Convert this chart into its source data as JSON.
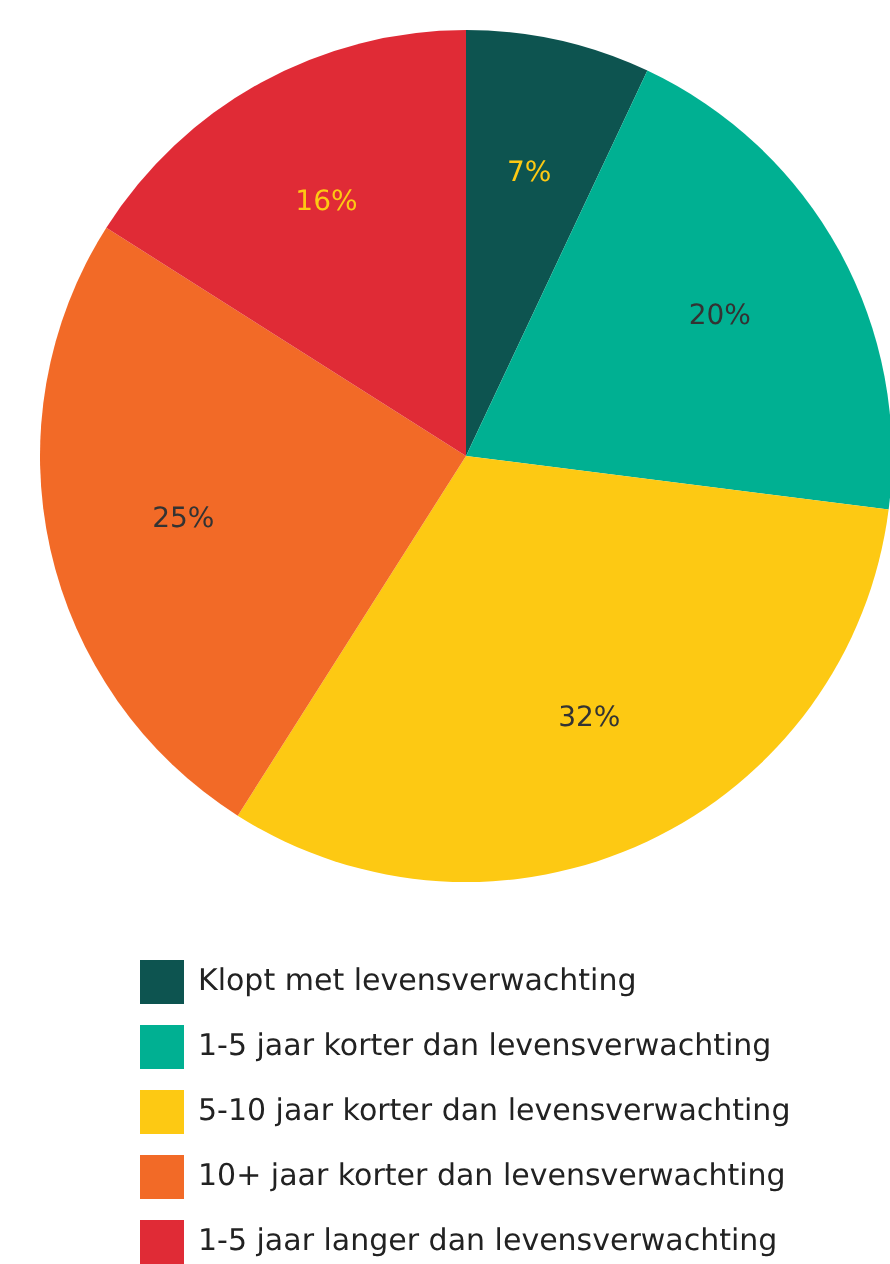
{
  "chart_data": {
    "type": "pie",
    "categories": [
      "Klopt met levensverwachting",
      "1-5 jaar korter dan levensverwachting",
      "5-10 jaar korter dan levensverwachting",
      "10+ jaar korter dan levensverwachting",
      "1-5 jaar langer dan levensverwachting"
    ],
    "values": [
      7,
      20,
      32,
      25,
      16
    ],
    "colors": [
      "#0d5450",
      "#00b092",
      "#fdc913",
      "#f26a27",
      "#e02b36"
    ],
    "value_labels": [
      "7%",
      "20%",
      "32%",
      "25%",
      "16%"
    ],
    "legend": "bottom"
  }
}
